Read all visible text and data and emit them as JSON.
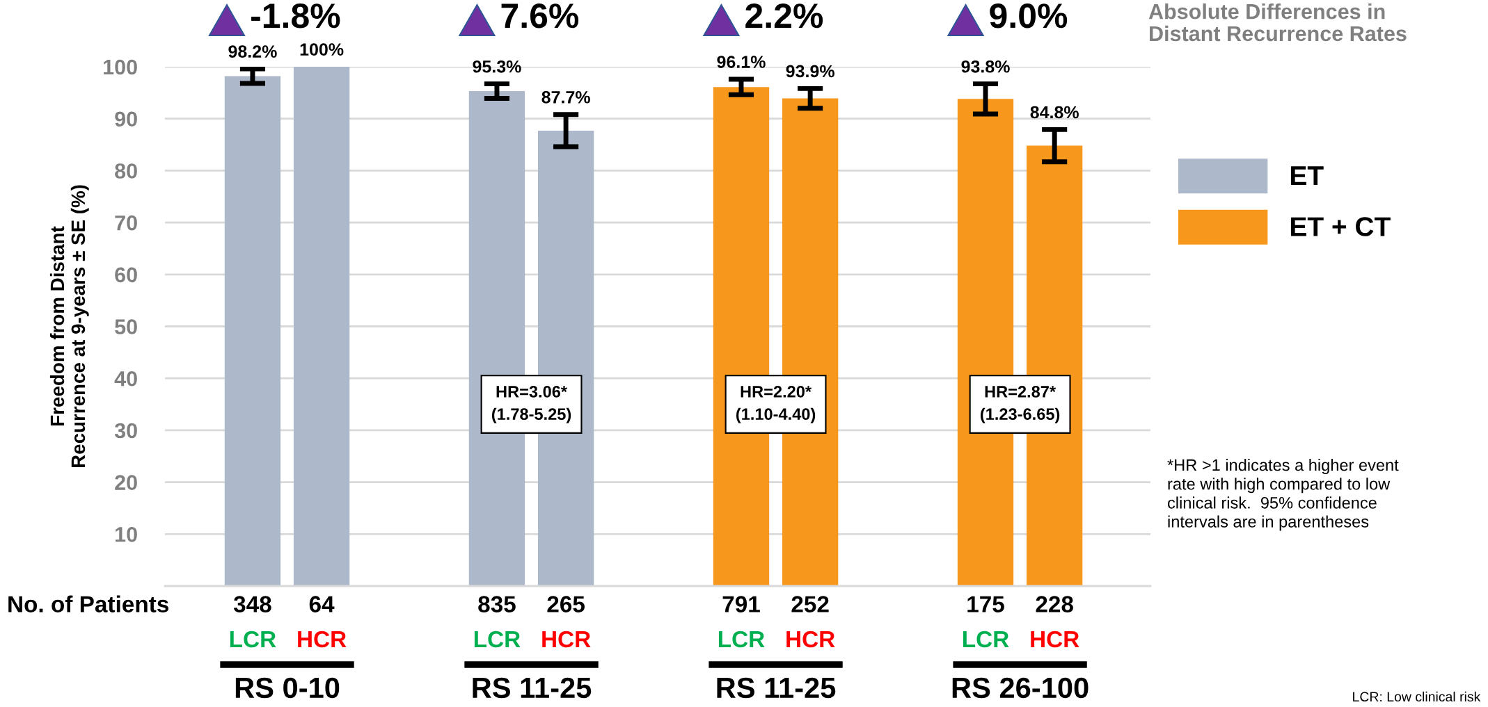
{
  "chart_data": {
    "type": "bar",
    "title": "Absolute Differences in\nDistant Recurrence Rates",
    "ylabel": "Freedom from Distant\nRecurrence at 9-years ± SE (%)",
    "categories": [
      "LCR",
      "HCR",
      "LCR",
      "HCR",
      "LCR",
      "HCR",
      "LCR",
      "HCR"
    ],
    "series": [
      {
        "name": "ET",
        "color": "#adb9ca",
        "values": [
          98.2,
          100,
          95.3,
          87.7,
          null,
          null,
          null,
          null
        ],
        "errors": [
          1.4,
          null,
          1.4,
          3.1,
          null,
          null,
          null,
          null
        ],
        "value_labels": [
          "98.2%",
          "100%",
          "95.3%",
          "87.7%",
          null,
          null,
          null,
          null
        ]
      },
      {
        "name": "ET + CT",
        "color": "#f7981d",
        "values": [
          null,
          null,
          null,
          null,
          96.1,
          93.9,
          93.8,
          84.8
        ],
        "errors": [
          null,
          null,
          null,
          null,
          1.5,
          1.9,
          2.9,
          3.1
        ],
        "value_labels": [
          null,
          null,
          null,
          null,
          "96.1%",
          "93.9%",
          "93.8%",
          "84.8%"
        ]
      }
    ],
    "ylim": [
      0,
      100
    ],
    "yticks": [
      10,
      20,
      30,
      40,
      50,
      60,
      70,
      80,
      90,
      100
    ],
    "grid": "y",
    "legend": "right",
    "annotations": [
      "-1.8%",
      "7.6%",
      "2.2%",
      "9.0%",
      "HR=3.06*\n(1.78-5.25)",
      "HR=2.20*\n(1.10-4.40)",
      "HR=2.87*\n(1.23-6.65)",
      "No. of Patients",
      "348",
      "64",
      "835",
      "265",
      "791",
      "252",
      "175",
      "228",
      "RS 0-10",
      "RS 11-25",
      "RS 11-25",
      "RS 26-100",
      "*HR >1 indicates a higher event\nrate with high compared to low\nclinical risk.  95% confidence\nintervals are in parentheses",
      "LCR: Low clinical risk"
    ]
  }
}
